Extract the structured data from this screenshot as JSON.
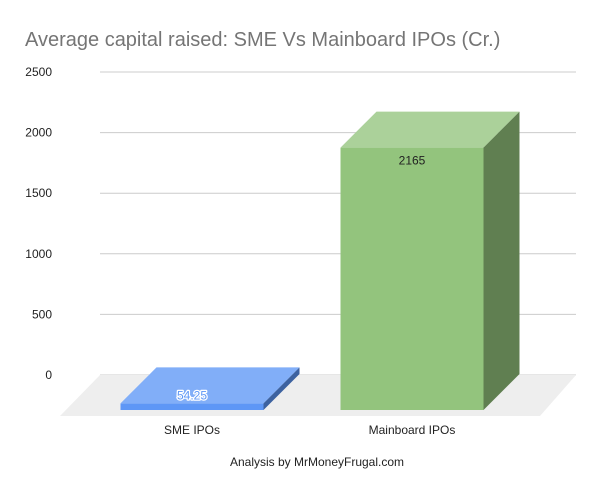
{
  "chart_data": {
    "type": "bar",
    "style": "3d",
    "title": "Average capital raised: SME Vs Mainboard IPOs (Cr.)",
    "xlabel": "Analysis by MrMoneyFrugal.com",
    "ylabel": "",
    "ylim": [
      0,
      2500
    ],
    "yticks": [
      "0",
      "500",
      "1000",
      "1500",
      "2000",
      "2500"
    ],
    "grid": true,
    "legend": "none",
    "categories": [
      "SME IPOs",
      "Mainboard IPOs"
    ],
    "values": [
      54.25,
      2165
    ],
    "data_labels": [
      "54.25",
      "2165"
    ],
    "colors": [
      "#5e97f6",
      "#93c47d"
    ]
  }
}
